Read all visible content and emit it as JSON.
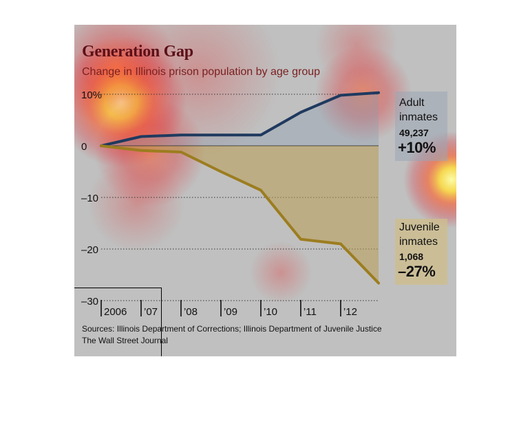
{
  "title": "Generation Gap",
  "subtitle": "Change in Illinois prison population by age group",
  "sources": "Sources: Illinois Department of Corrections; Illinois Department of Juvenile Justice",
  "publisher": "The Wall Street Journal",
  "colors": {
    "adult_line": "#1f3a5f",
    "juvenile_line": "#9c7d1f",
    "juvenile_fill": "#b89c54",
    "title": "#5c1018",
    "background": "#c0c0c0"
  },
  "annotations": {
    "adult": {
      "label_line1": "Adult",
      "label_line2": "inmates",
      "count": "49,237",
      "change": "+10%"
    },
    "juvenile": {
      "label_line1": "Juvenile",
      "label_line2": "inmates",
      "count": "1,068",
      "change": "–27%"
    }
  },
  "chart_data": {
    "type": "line",
    "title": "Generation Gap",
    "subtitle": "Change in Illinois prison population by age group",
    "xlabel": "",
    "ylabel": "",
    "x_tick_labels": [
      "2006",
      "’07",
      "’08",
      "’09",
      "’10",
      "’11",
      "’12"
    ],
    "y_tick_labels": [
      "10%",
      "0",
      "–10",
      "–20",
      "–30"
    ],
    "y_ticks": [
      10,
      0,
      -10,
      -20,
      -30
    ],
    "ylim": [
      -30,
      10
    ],
    "xlim": [
      2006,
      2012.95
    ],
    "grid": "dotted horizontal",
    "series": [
      {
        "name": "Adult inmates",
        "x": [
          2006,
          2007,
          2008,
          2009,
          2010,
          2011,
          2012,
          2012.95
        ],
        "y": [
          0,
          1.8,
          2.1,
          2.1,
          2.1,
          6.5,
          9.8,
          10.3
        ]
      },
      {
        "name": "Juvenile inmates",
        "x": [
          2006,
          2007,
          2008,
          2009,
          2010,
          2011,
          2012,
          2012.95
        ],
        "y": [
          0,
          -0.9,
          -1.2,
          -5.0,
          -8.6,
          -18.1,
          -19.0,
          -26.6
        ]
      }
    ]
  }
}
